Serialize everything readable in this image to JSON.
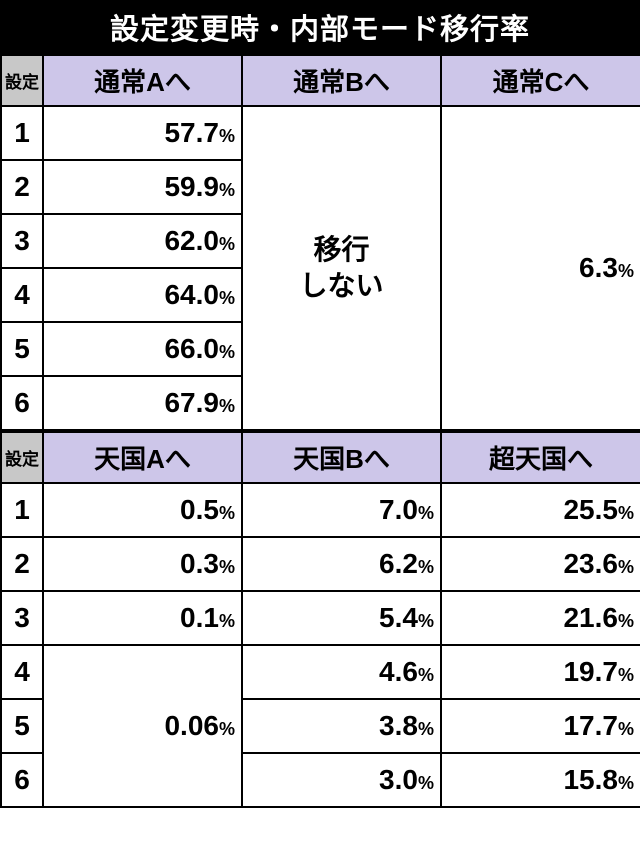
{
  "title": "設定変更時・内部モード移行率",
  "labels": {
    "setting": "設定"
  },
  "table1": {
    "columns": [
      "通常Aへ",
      "通常Bへ",
      "通常Cへ"
    ],
    "rows": [
      "1",
      "2",
      "3",
      "4",
      "5",
      "6"
    ],
    "colA": [
      "57.7",
      "59.9",
      "62.0",
      "64.0",
      "66.0",
      "67.9"
    ],
    "colB_merged": "移行\nしない",
    "colC_merged": "6.3"
  },
  "table2": {
    "columns": [
      "天国Aへ",
      "天国Bへ",
      "超天国へ"
    ],
    "rows": [
      "1",
      "2",
      "3",
      "4",
      "5",
      "6"
    ],
    "colA_top": [
      "0.5",
      "0.3",
      "0.1"
    ],
    "colA_merged": "0.06",
    "colB": [
      "7.0",
      "6.2",
      "5.4",
      "4.6",
      "3.8",
      "3.0"
    ],
    "colC": [
      "25.5",
      "23.6",
      "21.6",
      "19.7",
      "17.7",
      "15.8"
    ]
  },
  "pct": "%",
  "colors": {
    "header_bg": "#cdc6e9",
    "corner_bg": "#c8c8c8",
    "border": "#000000",
    "title_bg": "#000000",
    "title_fg": "#ffffff"
  }
}
